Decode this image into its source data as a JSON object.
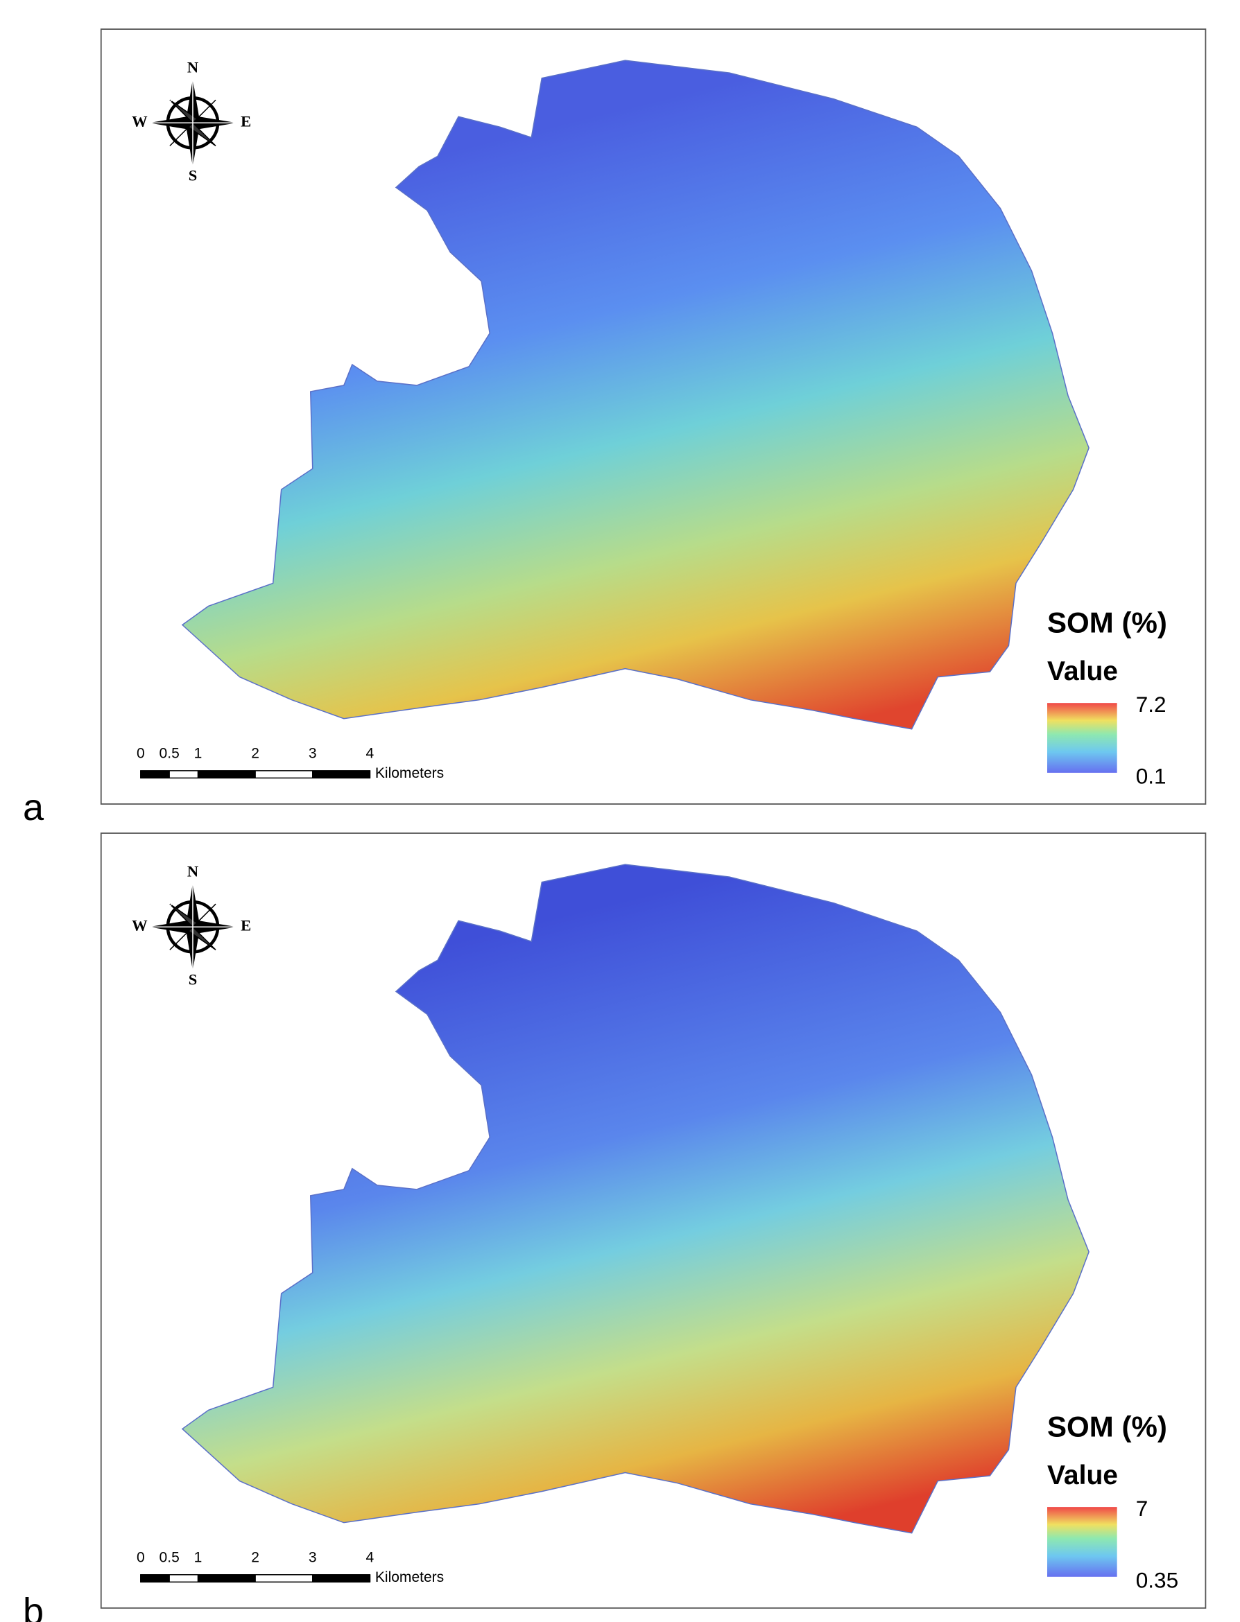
{
  "panels": [
    {
      "label": "a",
      "compass": {
        "n": "N",
        "s": "S",
        "e": "E",
        "w": "W"
      },
      "scale_ticks": [
        0,
        0.5,
        1,
        2,
        3,
        4
      ],
      "scale_unit": "Kilometers",
      "legend": {
        "title": "SOM (%)",
        "subtitle": "Value",
        "max": "7.2",
        "min": "0.1"
      }
    },
    {
      "label": "b",
      "compass": {
        "n": "N",
        "s": "S",
        "e": "E",
        "w": "W"
      },
      "scale_ticks": [
        0,
        0.5,
        1,
        2,
        3,
        4
      ],
      "scale_unit": "Kilometers",
      "legend": {
        "title": "SOM (%)",
        "subtitle": "Value",
        "max": "7",
        "min": "0.35"
      }
    }
  ]
}
